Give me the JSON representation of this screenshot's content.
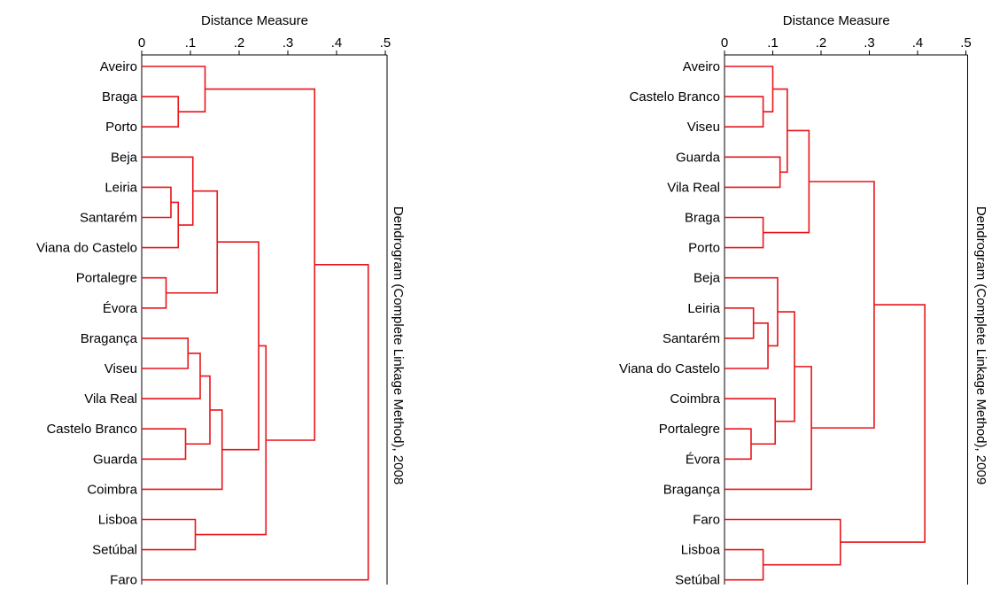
{
  "colors": {
    "branch": "#e8141a",
    "axis": "#000000",
    "text": "#000000"
  },
  "chart_data": [
    {
      "type": "dendrogram",
      "title": "Dendrogram (Complete Linkage Method), 2008",
      "xlabel": "Distance Measure",
      "x_ticks": [
        "0",
        ".1",
        ".2",
        ".3",
        ".4",
        ".5"
      ],
      "x_tick_values": [
        0,
        0.1,
        0.2,
        0.3,
        0.4,
        0.5
      ],
      "xlim": [
        0,
        0.5
      ],
      "leaves": [
        "Aveiro",
        "Braga",
        "Porto",
        "Beja",
        "Leiria",
        "Santarém",
        "Viana do Castelo",
        "Portalegre",
        "Évora",
        "Bragança",
        "Viseu",
        "Vila Real",
        "Castelo Branco",
        "Guarda",
        "Coimbra",
        "Lisboa",
        "Setúbal",
        "Faro"
      ],
      "merges": [
        {
          "children": [
            "Leiria",
            "Santarém"
          ],
          "height": 0.06
        },
        {
          "children": [
            "Portalegre",
            "Évora"
          ],
          "height": 0.05
        },
        {
          "children": [
            "Braga",
            "Porto"
          ],
          "height": 0.075
        },
        {
          "children": [
            "Castelo Branco",
            "Guarda"
          ],
          "height": 0.09
        },
        {
          "children": [
            [
              "Leiria",
              "Santarém"
            ],
            "Viana do Castelo"
          ],
          "height": 0.075
        },
        {
          "children": [
            "Bragança",
            "Viseu"
          ],
          "height": 0.095
        },
        {
          "children": [
            "Beja",
            [
              [
                "Leiria",
                "Santarém"
              ],
              "Viana do Castelo"
            ]
          ],
          "height": 0.105
        },
        {
          "children": [
            "Lisboa",
            "Setúbal"
          ],
          "height": 0.11
        },
        {
          "children": [
            [
              "Bragança",
              "Viseu"
            ],
            "Vila Real"
          ],
          "height": 0.12
        },
        {
          "children": [
            "Aveiro",
            [
              "Braga",
              "Porto"
            ]
          ],
          "height": 0.13
        },
        {
          "children": [
            [
              [
                "Bragança",
                "Viseu"
              ],
              "Vila Real"
            ],
            [
              "Castelo Branco",
              "Guarda"
            ]
          ],
          "height": 0.14
        },
        {
          "children": [
            [
              "Beja",
              [
                [
                  "Leiria",
                  "Santarém"
                ],
                "Viana do Castelo"
              ]
            ],
            [
              "Portalegre",
              "Évora"
            ]
          ],
          "height": 0.155
        },
        {
          "children": [
            [
              [
                [
                  "Bragança",
                  "Viseu"
                ],
                "Vila Real"
              ],
              [
                "Castelo Branco",
                "Guarda"
              ]
            ],
            "Coimbra"
          ],
          "height": 0.165
        },
        {
          "children": [
            [
              [
                "Beja",
                [
                  [
                    "Leiria",
                    "Santarém"
                  ],
                  "Viana do Castelo"
                ]
              ],
              [
                "Portalegre",
                "Évora"
              ]
            ],
            [
              [
                [
                  [
                    "Bragança",
                    "Viseu"
                  ],
                  "Vila Real"
                ],
                [
                  "Castelo Branco",
                  "Guarda"
                ]
              ],
              "Coimbra"
            ]
          ],
          "height": 0.24
        },
        {
          "children": [
            [
              [
                [
                  "Beja",
                  [
                    [
                      "Leiria",
                      "Santarém"
                    ],
                    "Viana do Castelo"
                  ]
                ],
                [
                  "Portalegre",
                  "Évora"
                ]
              ],
              [
                [
                  [
                    [
                      "Bragança",
                      "Viseu"
                    ],
                    "Vila Real"
                  ],
                  [
                    "Castelo Branco",
                    "Guarda"
                  ]
                ],
                "Coimbra"
              ]
            ],
            [
              "Lisboa",
              "Setúbal"
            ]
          ],
          "height": 0.255
        },
        {
          "children": [
            [
              "Aveiro",
              [
                "Braga",
                "Porto"
              ]
            ],
            [
              [
                [
                  [
                    "Beja",
                    [
                      [
                        "Leiria",
                        "Santarém"
                      ],
                      "Viana do Castelo"
                    ]
                  ],
                  [
                    "Portalegre",
                    "Évora"
                  ]
                ],
                [
                  [
                    [
                      [
                        "Bragança",
                        "Viseu"
                      ],
                      "Vila Real"
                    ],
                    [
                      "Castelo Branco",
                      "Guarda"
                    ]
                  ],
                  "Coimbra"
                ]
              ],
              [
                "Lisboa",
                "Setúbal"
              ]
            ]
          ],
          "height": 0.355
        },
        {
          "children": [
            [
              [
                "Aveiro",
                [
                  "Braga",
                  "Porto"
                ]
              ],
              [
                [
                  [
                    [
                      "Beja",
                      [
                        [
                          "Leiria",
                          "Santarém"
                        ],
                        "Viana do Castelo"
                      ]
                    ],
                    [
                      "Portalegre",
                      "Évora"
                    ]
                  ],
                  [
                    [
                      [
                        [
                          "Bragança",
                          "Viseu"
                        ],
                        "Vila Real"
                      ],
                      [
                        "Castelo Branco",
                        "Guarda"
                      ]
                    ],
                    "Coimbra"
                  ]
                ],
                [
                  "Lisboa",
                  "Setúbal"
                ]
              ]
            ],
            "Faro"
          ],
          "height": 0.465
        }
      ]
    },
    {
      "type": "dendrogram",
      "title": "Dendrogram (Complete Linkage Method), 2009",
      "xlabel": "Distance Measure",
      "x_ticks": [
        "0",
        ".1",
        ".2",
        ".3",
        ".4",
        ".5"
      ],
      "x_tick_values": [
        0,
        0.1,
        0.2,
        0.3,
        0.4,
        0.5
      ],
      "xlim": [
        0,
        0.5
      ],
      "leaves": [
        "Aveiro",
        "Castelo Branco",
        "Viseu",
        "Guarda",
        "Vila Real",
        "Braga",
        "Porto",
        "Beja",
        "Leiria",
        "Santarém",
        "Viana do Castelo",
        "Coimbra",
        "Portalegre",
        "Évora",
        "Bragança",
        "Faro",
        "Lisboa",
        "Setúbal"
      ],
      "merges": [
        {
          "children": [
            "Portalegre",
            "Évora"
          ],
          "height": 0.055
        },
        {
          "children": [
            "Leiria",
            "Santarém"
          ],
          "height": 0.06
        },
        {
          "children": [
            "Castelo Branco",
            "Viseu"
          ],
          "height": 0.08
        },
        {
          "children": [
            "Braga",
            "Porto"
          ],
          "height": 0.08
        },
        {
          "children": [
            "Lisboa",
            "Setúbal"
          ],
          "height": 0.08
        },
        {
          "children": [
            [
              "Leiria",
              "Santarém"
            ],
            "Viana do Castelo"
          ],
          "height": 0.09
        },
        {
          "children": [
            "Aveiro",
            [
              "Castelo Branco",
              "Viseu"
            ]
          ],
          "height": 0.1
        },
        {
          "children": [
            "Coimbra",
            [
              "Portalegre",
              "Évora"
            ]
          ],
          "height": 0.105
        },
        {
          "children": [
            "Beja",
            [
              [
                "Leiria",
                "Santarém"
              ],
              "Viana do Castelo"
            ]
          ],
          "height": 0.11
        },
        {
          "children": [
            "Guarda",
            "Vila Real"
          ],
          "height": 0.115
        },
        {
          "children": [
            [
              "Aveiro",
              [
                "Castelo Branco",
                "Viseu"
              ]
            ],
            [
              "Guarda",
              "Vila Real"
            ]
          ],
          "height": 0.13
        },
        {
          "children": [
            [
              "Beja",
              [
                [
                  "Leiria",
                  "Santarém"
                ],
                "Viana do Castelo"
              ]
            ],
            [
              "Coimbra",
              [
                "Portalegre",
                "Évora"
              ]
            ]
          ],
          "height": 0.145
        },
        {
          "children": [
            [
              [
                "Aveiro",
                [
                  "Castelo Branco",
                  "Viseu"
                ]
              ],
              [
                "Guarda",
                "Vila Real"
              ]
            ],
            [
              "Braga",
              "Porto"
            ]
          ],
          "height": 0.175
        },
        {
          "children": [
            [
              [
                "Beja",
                [
                  [
                    "Leiria",
                    "Santarém"
                  ],
                  "Viana do Castelo"
                ]
              ],
              [
                "Coimbra",
                [
                  "Portalegre",
                  "Évora"
                ]
              ]
            ],
            "Bragança"
          ],
          "height": 0.18
        },
        {
          "children": [
            "Faro",
            [
              "Lisboa",
              "Setúbal"
            ]
          ],
          "height": 0.24
        },
        {
          "children": [
            [
              [
                [
                  "Aveiro",
                  [
                    "Castelo Branco",
                    "Viseu"
                  ]
                ],
                [
                  "Guarda",
                  "Vila Real"
                ]
              ],
              [
                "Braga",
                "Porto"
              ]
            ],
            [
              [
                [
                  "Beja",
                  [
                    [
                      "Leiria",
                      "Santarém"
                    ],
                    "Viana do Castelo"
                  ]
                ],
                [
                  "Coimbra",
                  [
                    "Portalegre",
                    "Évora"
                  ]
                ]
              ],
              "Bragança"
            ]
          ],
          "height": 0.31
        },
        {
          "children": [
            [
              [
                [
                  [
                    "Aveiro",
                    [
                      "Castelo Branco",
                      "Viseu"
                    ]
                  ],
                  [
                    "Guarda",
                    "Vila Real"
                  ]
                ],
                [
                  "Braga",
                  "Porto"
                ]
              ],
              [
                [
                  [
                    "Beja",
                    [
                      [
                        "Leiria",
                        "Santarém"
                      ],
                      "Viana do Castelo"
                    ]
                  ],
                  [
                    "Coimbra",
                    [
                      "Portalegre",
                      "Évora"
                    ]
                  ]
                ],
                "Bragança"
              ]
            ],
            [
              "Faro",
              [
                "Lisboa",
                "Setúbal"
              ]
            ]
          ],
          "height": 0.415
        }
      ]
    }
  ]
}
